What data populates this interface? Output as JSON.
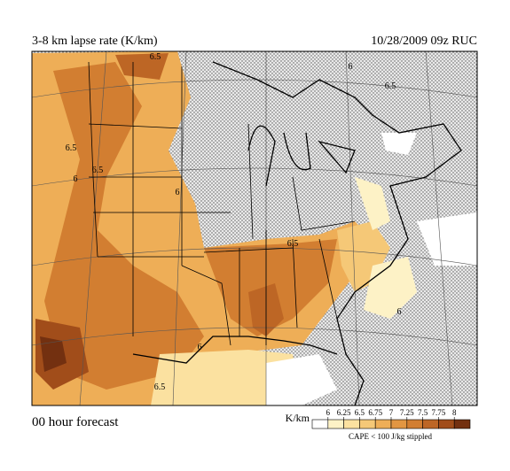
{
  "header": {
    "title": "3-8 km lapse rate (K/km)",
    "valid": "10/28/2009  09z  RUC"
  },
  "footer": {
    "forecast": "00 hour forecast",
    "note": "CAPE < 100 J/kg stippled"
  },
  "legend": {
    "unit": "K/km",
    "ticks": [
      6,
      6.25,
      6.5,
      6.75,
      7,
      7.25,
      7.5,
      7.75,
      8
    ],
    "colors": [
      "#ffffff",
      "#fdf2c6",
      "#fbe1a0",
      "#f5c877",
      "#eeae57",
      "#e29642",
      "#d27e31",
      "#bd6625",
      "#a14d1a",
      "#733010"
    ]
  },
  "contour_labels": [
    "6.5",
    "6.5",
    "6",
    "6.5",
    "6",
    "6.5",
    "6",
    "6.5",
    "6",
    "6.5",
    "6"
  ]
}
